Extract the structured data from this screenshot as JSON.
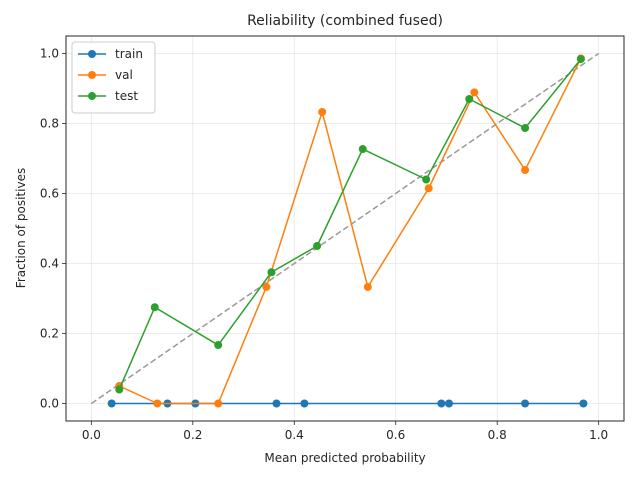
{
  "chart_data": {
    "type": "line",
    "title": "Reliability (combined fused)",
    "xlabel": "Mean predicted probability",
    "ylabel": "Fraction of positives",
    "xlim": [
      -0.05,
      1.05
    ],
    "ylim": [
      -0.05,
      1.05
    ],
    "x_ticks": [
      0.0,
      0.2,
      0.4,
      0.6,
      0.8,
      1.0
    ],
    "x_tick_labels": [
      "0.0",
      "0.2",
      "0.4",
      "0.6",
      "0.8",
      "1.0"
    ],
    "y_ticks": [
      0.0,
      0.2,
      0.4,
      0.6,
      0.8,
      1.0
    ],
    "y_tick_labels": [
      "0.0",
      "0.2",
      "0.4",
      "0.6",
      "0.8",
      "1.0"
    ],
    "grid": true,
    "legend_position": "top-left",
    "reference_line": {
      "x": [
        0,
        1
      ],
      "y": [
        0,
        1
      ],
      "color": "#999999",
      "style": "dashed"
    },
    "series": [
      {
        "name": "train",
        "color": "#1f77b4",
        "x": [
          0.04,
          0.15,
          0.205,
          0.365,
          0.42,
          0.69,
          0.705,
          0.855,
          0.97
        ],
        "y": [
          0,
          0,
          0,
          0,
          0,
          0,
          0,
          0,
          0
        ]
      },
      {
        "name": "val",
        "color": "#ff7f0e",
        "x": [
          0.055,
          0.13,
          0.25,
          0.345,
          0.455,
          0.545,
          0.665,
          0.755,
          0.855,
          0.965
        ],
        "y": [
          0.05,
          0.0,
          0.0,
          0.333,
          0.833,
          0.333,
          0.615,
          0.889,
          0.667,
          0.986
        ]
      },
      {
        "name": "test",
        "color": "#2ca02c",
        "x": [
          0.055,
          0.125,
          0.25,
          0.355,
          0.445,
          0.535,
          0.66,
          0.745,
          0.855,
          0.965
        ],
        "y": [
          0.04,
          0.275,
          0.167,
          0.375,
          0.45,
          0.727,
          0.64,
          0.87,
          0.787,
          0.984
        ]
      }
    ]
  }
}
